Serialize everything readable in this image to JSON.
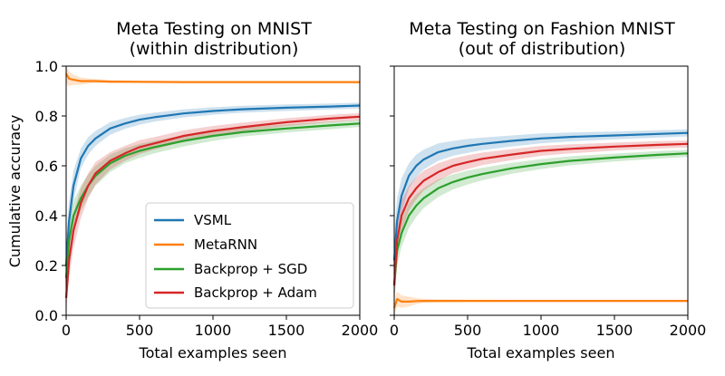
{
  "chart_data": [
    {
      "type": "line",
      "title_line1": "Meta Testing on MNIST",
      "title_line2": "(within distribution)",
      "xlabel": "Total examples seen",
      "ylabel": "Cumulative accuracy",
      "xlim": [
        0,
        2000
      ],
      "ylim": [
        0.0,
        1.0
      ],
      "xticks": [
        0,
        500,
        1000,
        1500,
        2000
      ],
      "yticks": [
        0.0,
        0.2,
        0.4,
        0.6,
        0.8,
        1.0
      ],
      "ytick_labels": [
        "0.0",
        "0.2",
        "0.4",
        "0.6",
        "0.8",
        "1.0"
      ],
      "grid": false,
      "legend_position": "lower-right",
      "series": [
        {
          "name": "VSML",
          "color": "#1f77b4",
          "x": [
            0,
            20,
            50,
            100,
            150,
            200,
            300,
            400,
            500,
            600,
            800,
            1000,
            1200,
            1500,
            1800,
            2000
          ],
          "y": [
            0.2,
            0.38,
            0.52,
            0.63,
            0.68,
            0.71,
            0.75,
            0.77,
            0.785,
            0.795,
            0.81,
            0.82,
            0.827,
            0.833,
            0.838,
            0.842
          ],
          "band": [
            0.1,
            0.08,
            0.06,
            0.04,
            0.035,
            0.03,
            0.025,
            0.022,
            0.02,
            0.018,
            0.016,
            0.015,
            0.014,
            0.013,
            0.012,
            0.012
          ]
        },
        {
          "name": "MetaRNN",
          "color": "#ff7f0e",
          "x": [
            0,
            20,
            50,
            100,
            150,
            200,
            300,
            500,
            800,
            1000,
            1500,
            2000
          ],
          "y": [
            0.97,
            0.95,
            0.945,
            0.94,
            0.94,
            0.94,
            0.938,
            0.937,
            0.936,
            0.936,
            0.936,
            0.936
          ],
          "band": [
            0.04,
            0.03,
            0.02,
            0.015,
            0.01,
            0.008,
            0.006,
            0.005,
            0.004,
            0.004,
            0.004,
            0.004
          ]
        },
        {
          "name": "Backprop + SGD",
          "color": "#2ca02c",
          "x": [
            0,
            20,
            50,
            100,
            150,
            200,
            300,
            400,
            500,
            600,
            800,
            1000,
            1200,
            1500,
            1800,
            2000
          ],
          "y": [
            0.15,
            0.3,
            0.4,
            0.47,
            0.52,
            0.56,
            0.61,
            0.64,
            0.66,
            0.675,
            0.7,
            0.72,
            0.735,
            0.75,
            0.762,
            0.77
          ],
          "band": [
            0.08,
            0.07,
            0.06,
            0.05,
            0.045,
            0.04,
            0.035,
            0.03,
            0.028,
            0.025,
            0.022,
            0.02,
            0.018,
            0.016,
            0.015,
            0.014
          ]
        },
        {
          "name": "Backprop + Adam",
          "color": "#d62728",
          "x": [
            0,
            20,
            50,
            100,
            150,
            200,
            300,
            400,
            500,
            600,
            800,
            1000,
            1200,
            1500,
            1800,
            2000
          ],
          "y": [
            0.07,
            0.22,
            0.34,
            0.45,
            0.52,
            0.57,
            0.62,
            0.65,
            0.675,
            0.69,
            0.72,
            0.74,
            0.755,
            0.775,
            0.79,
            0.797
          ],
          "band": [
            0.06,
            0.07,
            0.07,
            0.06,
            0.05,
            0.045,
            0.035,
            0.03,
            0.028,
            0.025,
            0.022,
            0.02,
            0.018,
            0.016,
            0.015,
            0.014
          ]
        }
      ]
    },
    {
      "type": "line",
      "title_line1": "Meta Testing on Fashion MNIST",
      "title_line2": "(out of distribution)",
      "xlabel": "Total examples seen",
      "ylabel": "",
      "xlim": [
        0,
        2000
      ],
      "ylim": [
        0.0,
        1.0
      ],
      "xticks": [
        0,
        500,
        1000,
        1500,
        2000
      ],
      "yticks": [
        0.0,
        0.2,
        0.4,
        0.6,
        0.8,
        1.0
      ],
      "ytick_labels": [],
      "grid": false,
      "series": [
        {
          "name": "VSML",
          "color": "#1f77b4",
          "x": [
            0,
            20,
            50,
            100,
            150,
            200,
            300,
            400,
            500,
            600,
            800,
            1000,
            1200,
            1500,
            1800,
            2000
          ],
          "y": [
            0.22,
            0.38,
            0.48,
            0.56,
            0.6,
            0.625,
            0.655,
            0.67,
            0.68,
            0.688,
            0.7,
            0.71,
            0.716,
            0.722,
            0.728,
            0.732
          ],
          "band": [
            0.1,
            0.09,
            0.07,
            0.05,
            0.045,
            0.04,
            0.035,
            0.03,
            0.028,
            0.025,
            0.022,
            0.02,
            0.018,
            0.016,
            0.015,
            0.014
          ]
        },
        {
          "name": "MetaRNN",
          "color": "#ff7f0e",
          "x": [
            0,
            20,
            50,
            100,
            150,
            200,
            300,
            500,
            800,
            1000,
            1500,
            2000
          ],
          "y": [
            0.03,
            0.065,
            0.055,
            0.055,
            0.057,
            0.058,
            0.058,
            0.058,
            0.058,
            0.058,
            0.058,
            0.058
          ],
          "band": [
            0.03,
            0.03,
            0.025,
            0.02,
            0.012,
            0.008,
            0.006,
            0.005,
            0.004,
            0.004,
            0.004,
            0.004
          ]
        },
        {
          "name": "Backprop + SGD",
          "color": "#2ca02c",
          "x": [
            0,
            20,
            50,
            100,
            150,
            200,
            300,
            400,
            500,
            600,
            800,
            1000,
            1200,
            1500,
            1800,
            2000
          ],
          "y": [
            0.12,
            0.26,
            0.33,
            0.4,
            0.44,
            0.47,
            0.51,
            0.535,
            0.553,
            0.567,
            0.59,
            0.607,
            0.62,
            0.633,
            0.644,
            0.65
          ],
          "band": [
            0.07,
            0.06,
            0.055,
            0.05,
            0.045,
            0.04,
            0.035,
            0.03,
            0.028,
            0.025,
            0.022,
            0.02,
            0.018,
            0.016,
            0.015,
            0.014
          ]
        },
        {
          "name": "Backprop + Adam",
          "color": "#d62728",
          "x": [
            0,
            20,
            50,
            100,
            150,
            200,
            300,
            400,
            500,
            600,
            800,
            1000,
            1200,
            1500,
            1800,
            2000
          ],
          "y": [
            0.12,
            0.3,
            0.4,
            0.47,
            0.51,
            0.54,
            0.575,
            0.6,
            0.615,
            0.628,
            0.645,
            0.66,
            0.668,
            0.677,
            0.684,
            0.688
          ],
          "band": [
            0.08,
            0.07,
            0.06,
            0.05,
            0.045,
            0.04,
            0.035,
            0.03,
            0.028,
            0.025,
            0.022,
            0.02,
            0.018,
            0.016,
            0.015,
            0.014
          ]
        }
      ]
    }
  ]
}
